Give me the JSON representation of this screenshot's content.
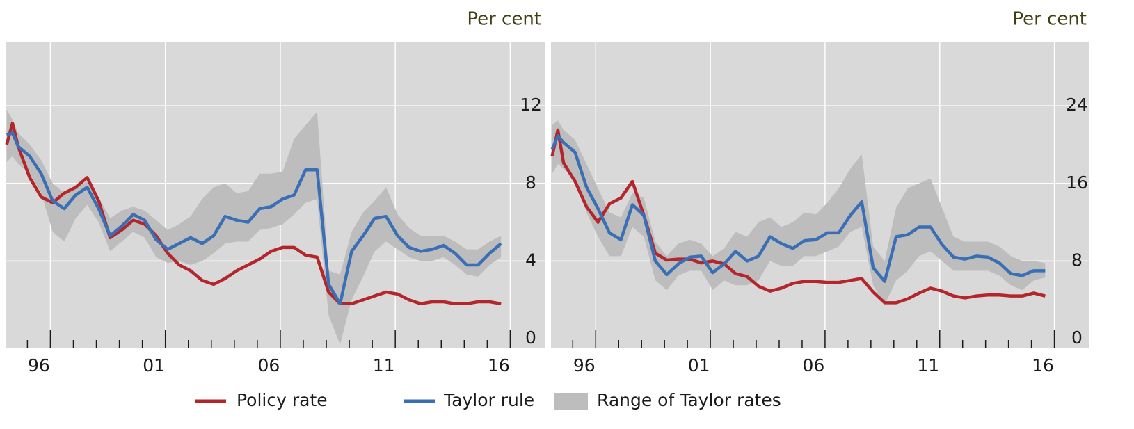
{
  "chart_data": [
    {
      "type": "line",
      "y_label": "Per cent",
      "x": [
        1995.1,
        1995.35,
        1995.6,
        1996.1,
        1996.6,
        1997.1,
        1997.6,
        1998.1,
        1998.6,
        1999.1,
        1999.6,
        2000.1,
        2000.6,
        2001.1,
        2001.6,
        2002.1,
        2002.6,
        2003.1,
        2003.6,
        2004.1,
        2004.6,
        2005.1,
        2005.6,
        2006.1,
        2006.6,
        2007.1,
        2007.6,
        2008.1,
        2008.6,
        2009.1,
        2009.6,
        2010.1,
        2010.6,
        2011.1,
        2011.6,
        2012.1,
        2012.6,
        2013.1,
        2013.6,
        2014.1,
        2014.6,
        2015.1,
        2015.6,
        2016.1,
        2016.6
      ],
      "xlim": [
        1995.05,
        2018.5
      ],
      "xticks": [
        {
          "value": 1996.5,
          "label": "96"
        },
        {
          "value": 2001.5,
          "label": "01"
        },
        {
          "value": 2006.5,
          "label": "06"
        },
        {
          "value": 2011.5,
          "label": "11"
        },
        {
          "value": 2016.5,
          "label": "16"
        }
      ],
      "xgrid": [
        1997,
        2002,
        2007,
        2012,
        2017
      ],
      "xminor": [
        1996,
        1997,
        1998,
        1999,
        2000,
        2001,
        2002,
        2003,
        2004,
        2005,
        2006,
        2007,
        2008,
        2009,
        2010,
        2011,
        2012,
        2013,
        2014,
        2015,
        2016,
        2017
      ],
      "ylim": [
        -0.5,
        15.3
      ],
      "yticks": [
        0,
        4,
        8,
        12
      ],
      "grid": true,
      "series": [
        {
          "name": "Policy rate",
          "color": "#b3262b",
          "values": [
            10.0,
            11.1,
            9.9,
            8.3,
            7.3,
            7.0,
            7.5,
            7.8,
            8.3,
            7.1,
            5.2,
            5.6,
            6.1,
            5.9,
            5.3,
            4.4,
            3.8,
            3.5,
            3.0,
            2.8,
            3.1,
            3.5,
            3.8,
            4.1,
            4.5,
            4.7,
            4.7,
            4.3,
            4.2,
            2.4,
            1.8,
            1.8,
            2.0,
            2.2,
            2.4,
            2.3,
            2.0,
            1.8,
            1.9,
            1.9,
            1.8,
            1.8,
            1.9,
            1.9,
            1.8
          ]
        },
        {
          "name": "Taylor rule",
          "color": "#3a6fb5",
          "values": [
            10.5,
            10.6,
            9.9,
            9.4,
            8.5,
            7.1,
            6.7,
            7.4,
            7.8,
            6.7,
            5.3,
            5.8,
            6.4,
            6.1,
            5.1,
            4.6,
            4.9,
            5.2,
            4.9,
            5.3,
            6.3,
            6.1,
            6.0,
            6.7,
            6.8,
            7.2,
            7.4,
            8.7,
            8.7,
            2.8,
            1.8,
            4.5,
            5.3,
            6.2,
            6.3,
            5.3,
            4.7,
            4.5,
            4.6,
            4.8,
            4.4,
            3.8,
            3.8,
            4.4,
            4.9
          ]
        },
        {
          "name": "Range of Taylor rates",
          "color": "#bdbdbd",
          "high": [
            11.8,
            11.3,
            10.6,
            10.0,
            9.2,
            8.0,
            7.5,
            7.8,
            8.1,
            7.3,
            6.2,
            6.6,
            6.8,
            6.6,
            6.1,
            5.6,
            5.9,
            6.3,
            7.2,
            7.8,
            8.0,
            7.5,
            7.6,
            8.5,
            8.5,
            8.6,
            10.3,
            11.0,
            11.7,
            3.5,
            3.3,
            5.5,
            6.5,
            7.1,
            7.8,
            6.4,
            5.7,
            5.3,
            5.3,
            5.3,
            5.0,
            4.6,
            4.6,
            5.0,
            5.3
          ],
          "low": [
            9.1,
            9.4,
            9.0,
            8.5,
            7.5,
            5.5,
            5.0,
            6.2,
            6.9,
            6.0,
            4.5,
            5.0,
            5.5,
            5.2,
            4.2,
            3.9,
            4.0,
            3.8,
            4.0,
            4.4,
            4.9,
            5.0,
            5.0,
            5.6,
            5.7,
            5.9,
            6.4,
            7.0,
            7.2,
            1.2,
            -0.3,
            2.0,
            3.2,
            4.5,
            5.0,
            4.6,
            4.2,
            4.0,
            4.0,
            4.2,
            3.8,
            3.3,
            3.2,
            3.8,
            4.2
          ]
        }
      ]
    },
    {
      "type": "line",
      "y_label": "Per cent",
      "x": [
        1995.1,
        1995.35,
        1995.6,
        1996.1,
        1996.6,
        1997.1,
        1997.6,
        1998.1,
        1998.6,
        1999.1,
        1999.6,
        2000.1,
        2000.6,
        2001.1,
        2001.6,
        2002.1,
        2002.6,
        2003.1,
        2003.6,
        2004.1,
        2004.6,
        2005.1,
        2005.6,
        2006.1,
        2006.6,
        2007.1,
        2007.6,
        2008.1,
        2008.6,
        2009.1,
        2009.6,
        2010.1,
        2010.6,
        2011.1,
        2011.6,
        2012.1,
        2012.6,
        2013.1,
        2013.6,
        2014.1,
        2014.6,
        2015.1,
        2015.6,
        2016.1,
        2016.6
      ],
      "xlim": [
        1995.05,
        2018.5
      ],
      "xticks": [
        {
          "value": 1996.5,
          "label": "96"
        },
        {
          "value": 2001.5,
          "label": "01"
        },
        {
          "value": 2006.5,
          "label": "06"
        },
        {
          "value": 2011.5,
          "label": "11"
        },
        {
          "value": 2016.5,
          "label": "16"
        }
      ],
      "xgrid": [
        1997,
        2002,
        2007,
        2012,
        2017
      ],
      "xminor": [
        1996,
        1997,
        1998,
        1999,
        2000,
        2001,
        2002,
        2003,
        2004,
        2005,
        2006,
        2007,
        2008,
        2009,
        2010,
        2011,
        2012,
        2013,
        2014,
        2015,
        2016,
        2017
      ],
      "ylim": [
        -1,
        30.6
      ],
      "yticks": [
        0,
        8,
        16,
        24
      ],
      "grid": true,
      "series": [
        {
          "name": "Policy rate",
          "color": "#b3262b",
          "values": [
            18.8,
            21.5,
            18.1,
            16.2,
            13.6,
            12.0,
            13.9,
            14.5,
            16.2,
            12.7,
            8.8,
            8.1,
            8.2,
            8.2,
            7.8,
            8.0,
            7.7,
            6.7,
            6.4,
            5.4,
            4.9,
            5.2,
            5.7,
            5.9,
            5.9,
            5.8,
            5.8,
            6.0,
            6.2,
            4.8,
            3.7,
            3.7,
            4.1,
            4.7,
            5.2,
            4.9,
            4.4,
            4.2,
            4.4,
            4.5,
            4.5,
            4.4,
            4.4,
            4.7,
            4.4
          ]
        },
        {
          "name": "Taylor rule",
          "color": "#3a6fb5",
          "values": [
            19.5,
            20.9,
            20.2,
            19.2,
            15.6,
            13.4,
            10.9,
            10.2,
            13.8,
            12.7,
            8.0,
            6.6,
            7.7,
            8.4,
            8.5,
            6.8,
            7.7,
            9.0,
            8.0,
            8.5,
            10.5,
            9.8,
            9.3,
            10.1,
            10.2,
            10.9,
            10.9,
            12.7,
            14.1,
            7.3,
            5.9,
            10.5,
            10.7,
            11.5,
            11.5,
            9.7,
            8.4,
            8.2,
            8.5,
            8.4,
            7.8,
            6.7,
            6.5,
            7.0,
            7.0
          ]
        },
        {
          "name": "Range of Taylor rates",
          "color": "#bdbdbd",
          "high": [
            22,
            22.5,
            21.5,
            20.5,
            18,
            15.5,
            13,
            12.5,
            15,
            14.5,
            10,
            8.5,
            9.8,
            10.2,
            9.8,
            8.5,
            9.3,
            11,
            10.5,
            12,
            12.5,
            11.5,
            12,
            13,
            12.8,
            14,
            15.5,
            17.5,
            19,
            9.5,
            8,
            13.5,
            15.5,
            16,
            16.5,
            13.5,
            10.5,
            10,
            10,
            10,
            9.5,
            8.5,
            8,
            8,
            7.8
          ],
          "low": [
            17,
            18,
            17.5,
            16.5,
            13,
            10.5,
            8.5,
            8.5,
            11.5,
            10.5,
            6,
            5,
            6.5,
            7,
            7,
            5,
            6,
            5.5,
            5.5,
            6,
            8,
            7.5,
            7.5,
            8.5,
            8.5,
            9,
            9.5,
            11,
            11.5,
            5.5,
            3.5,
            6,
            7,
            8.5,
            9,
            8,
            7,
            7,
            7,
            7,
            6.5,
            5.5,
            5,
            6,
            6.3
          ]
        }
      ]
    }
  ]
}
